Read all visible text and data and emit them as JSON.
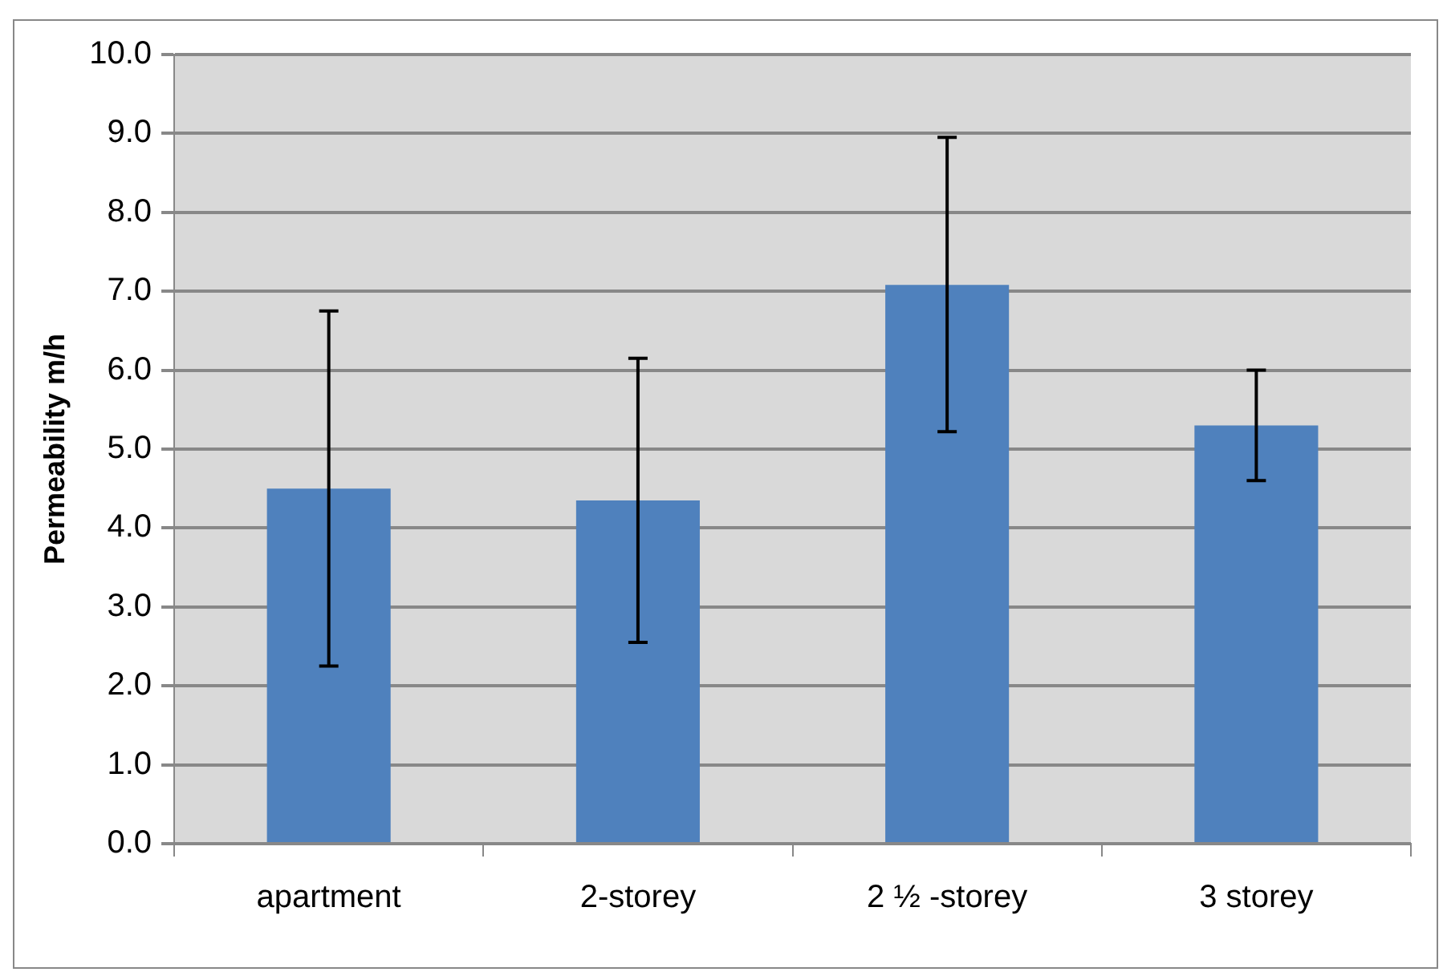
{
  "chart_data": {
    "type": "bar",
    "ylabel": "Permeability m/h",
    "categories": [
      "apartment",
      "2-storey",
      "2 ½ -storey",
      "3 storey"
    ],
    "values": [
      4.5,
      4.35,
      7.08,
      5.3
    ],
    "color": "#4f81bd",
    "errors": [
      [
        2.25,
        6.75
      ],
      [
        2.55,
        6.15
      ],
      [
        5.22,
        8.95
      ],
      [
        4.6,
        6.0
      ]
    ],
    "ylim": [
      0,
      10
    ],
    "yticks": [
      {
        "value": 0,
        "label": "0.0"
      },
      {
        "value": 1,
        "label": "1.0"
      },
      {
        "value": 2,
        "label": "2.0"
      },
      {
        "value": 3,
        "label": "3.0"
      },
      {
        "value": 4,
        "label": "4.0"
      },
      {
        "value": 5,
        "label": "5.0"
      },
      {
        "value": 6,
        "label": "6.0"
      },
      {
        "value": 7,
        "label": "7.0"
      },
      {
        "value": 8,
        "label": "8.0"
      },
      {
        "value": 9,
        "label": "9.0"
      },
      {
        "value": 10,
        "label": "10.0"
      }
    ],
    "grid": "y"
  }
}
